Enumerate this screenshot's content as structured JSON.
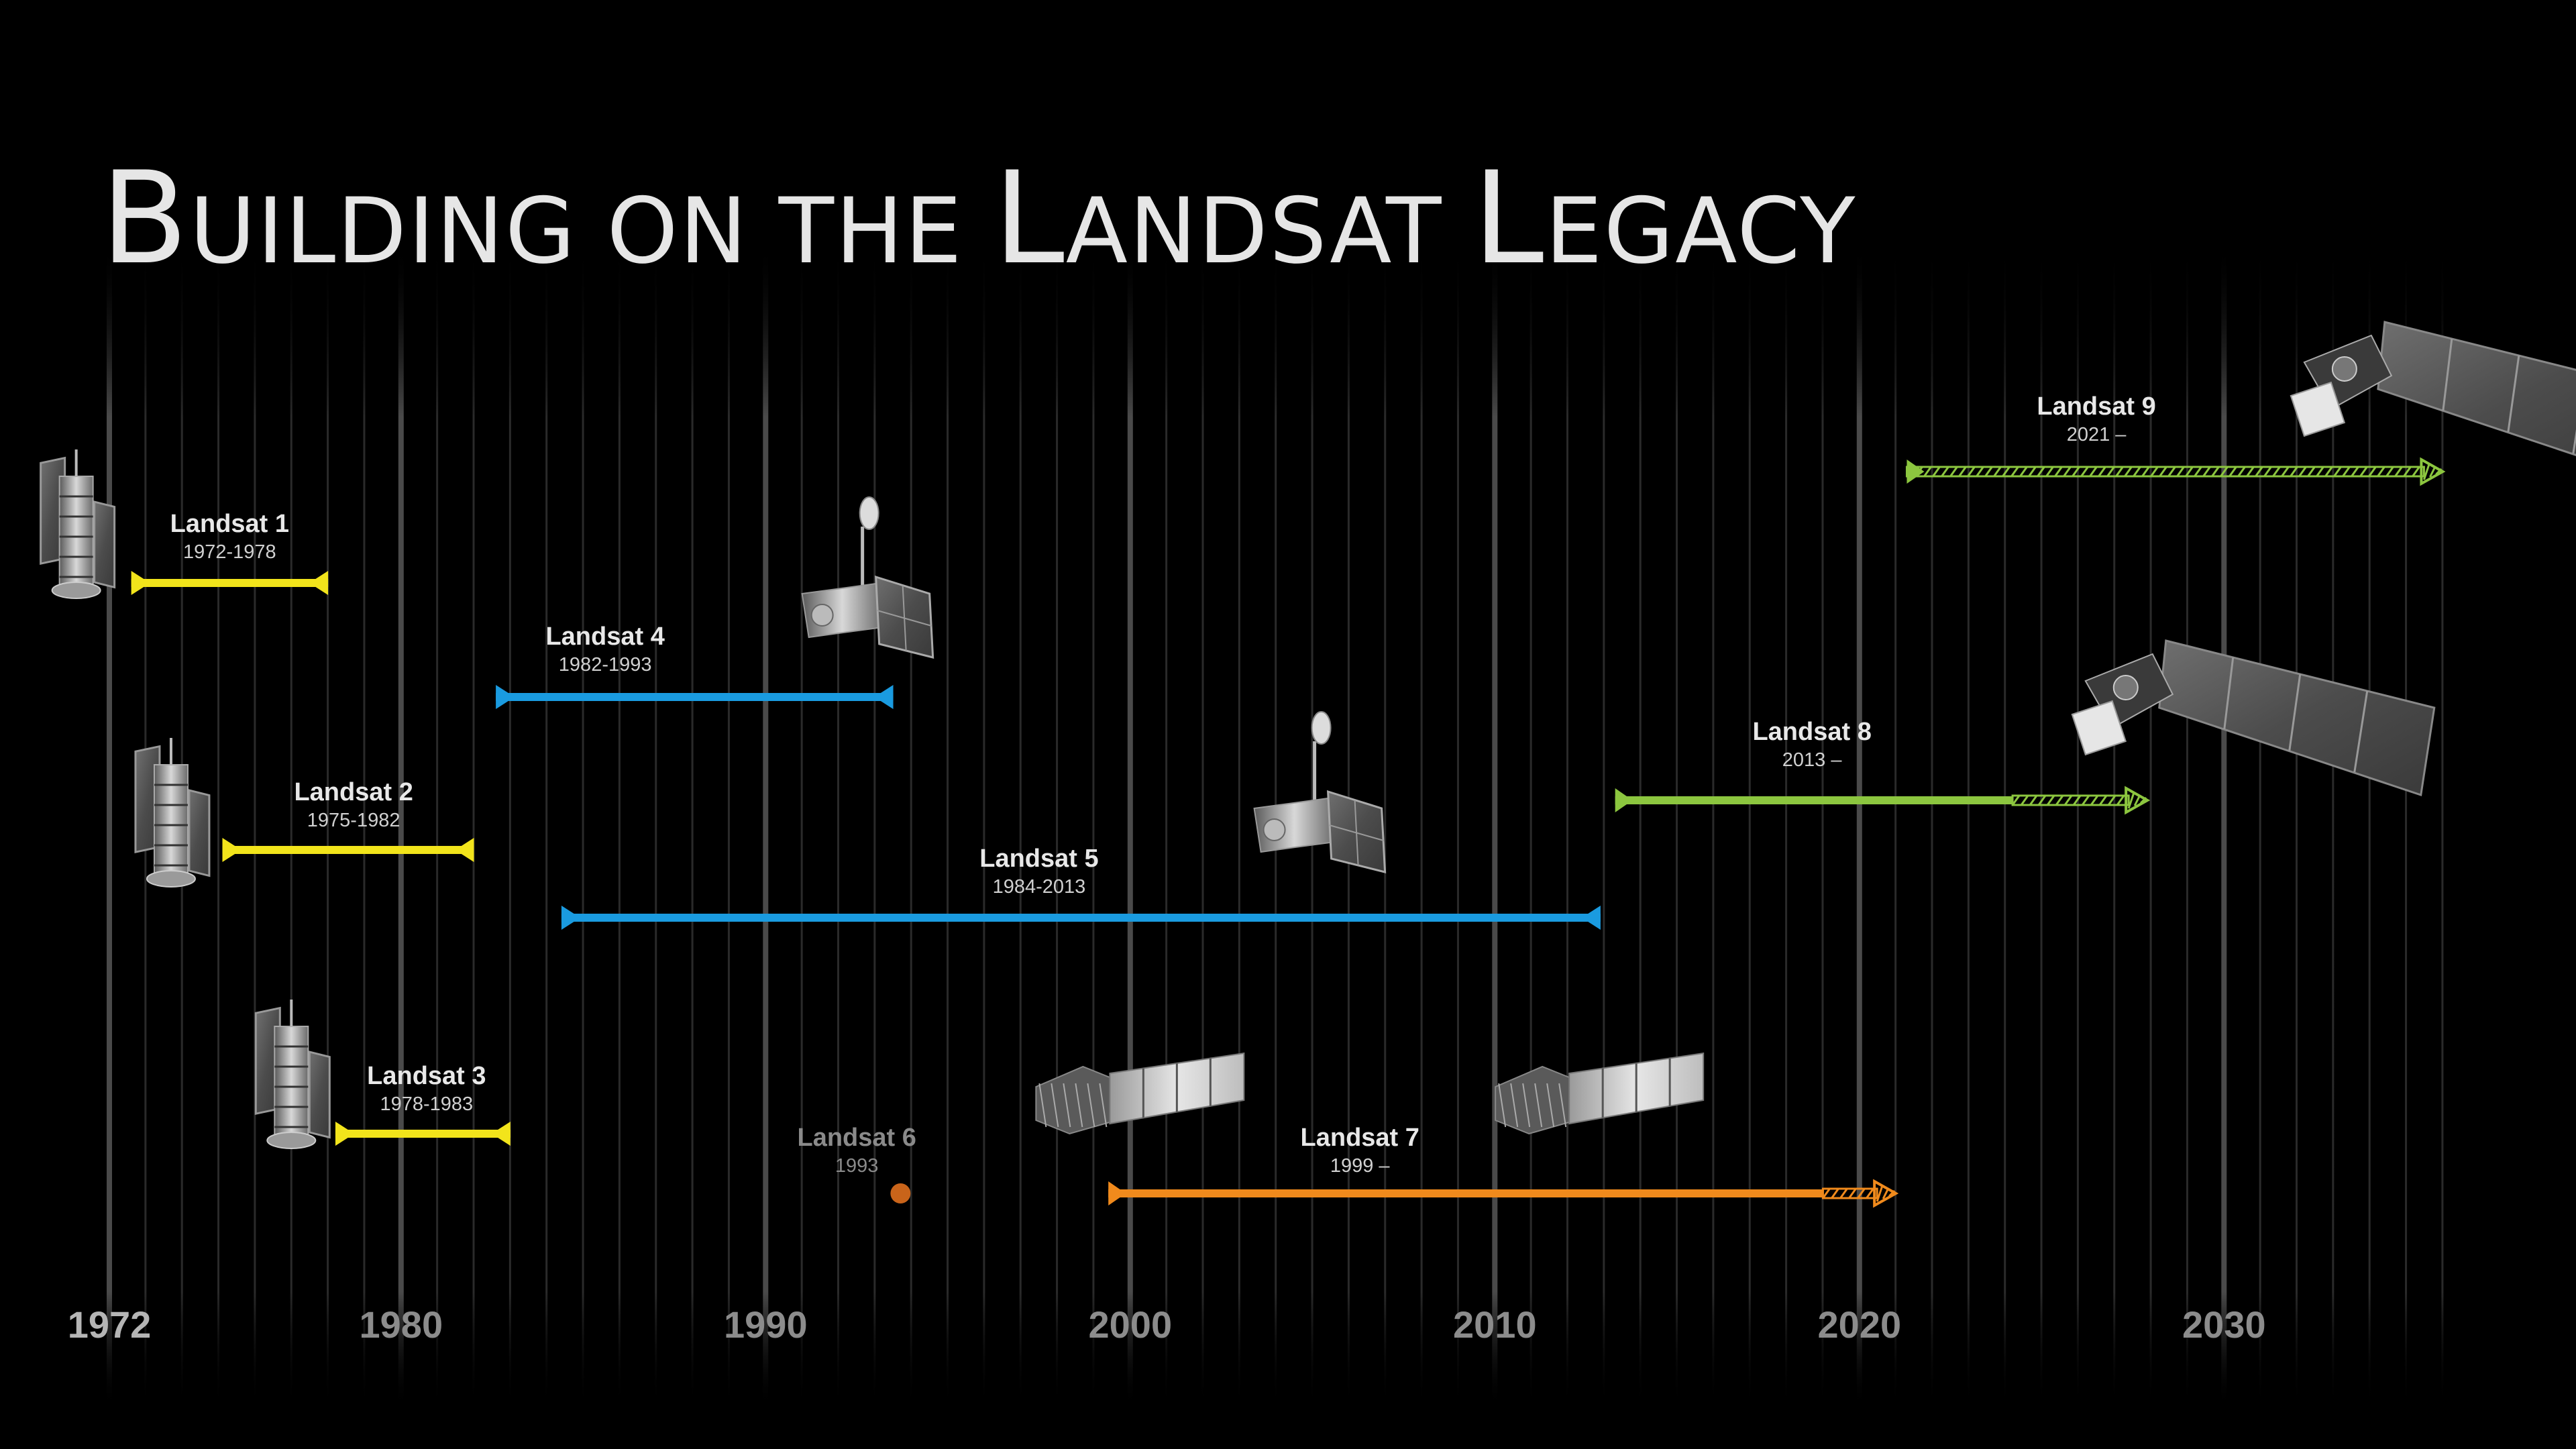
{
  "title": {
    "parts": [
      {
        "text": "B",
        "size": "big"
      },
      {
        "text": "UILDING ON THE ",
        "size": "small"
      },
      {
        "text": "L",
        "size": "big"
      },
      {
        "text": "ANDSAT ",
        "size": "small"
      },
      {
        "text": "L",
        "size": "big"
      },
      {
        "text": "EGACY",
        "size": "small"
      }
    ]
  },
  "axis": {
    "ticks": [
      1972,
      1980,
      1990,
      2000,
      2010,
      2020,
      2030
    ],
    "range": [
      1972,
      2036
    ]
  },
  "colors": {
    "gen1": "#f2e41b",
    "gen2": "#1a9be0",
    "l6": "#c9641a",
    "l7": "#f08a1c",
    "l89": "#8cc63f"
  },
  "missions": [
    {
      "name": "Landsat 1",
      "years": "1972-1978",
      "start": 1972.6,
      "end": 1978.0,
      "ongoing": false,
      "color": "gen1",
      "label_year": 1975.3,
      "tier": "r1",
      "satellite": "gen1-satellite-icon",
      "sat_year": 1971.0
    },
    {
      "name": "Landsat 2",
      "years": "1975-1982",
      "start": 1975.1,
      "end": 1982.0,
      "ongoing": false,
      "color": "gen1",
      "label_year": 1978.7,
      "tier": "r4",
      "satellite": "gen1-satellite-icon",
      "sat_year": 1973.6
    },
    {
      "name": "Landsat 3",
      "years": "1978-1983",
      "start": 1978.2,
      "end": 1983.0,
      "ongoing": false,
      "color": "gen1",
      "label_year": 1980.7,
      "tier": "r7",
      "satellite": "gen1-satellite-icon",
      "sat_year": 1976.9
    },
    {
      "name": "Landsat 4",
      "years": "1982-1993",
      "start": 1982.6,
      "end": 1993.5,
      "ongoing": false,
      "color": "gen2",
      "label_year": 1985.6,
      "tier": "r2",
      "satellite": "gen2-satellite-icon",
      "sat_year": 1991.0
    },
    {
      "name": "Landsat 5",
      "years": "1984-2013",
      "start": 1984.4,
      "end": 2012.9,
      "ongoing": false,
      "color": "gen2",
      "label_year": 1997.5,
      "tier": "r5",
      "satellite": "gen2-satellite-icon",
      "sat_year": 2003.4
    },
    {
      "name": "Landsat 6",
      "years": "1993",
      "start": 1993.7,
      "end": 1993.7,
      "failed": true,
      "color": "l6",
      "label_year": 1992.5,
      "tier": "r8",
      "satellite": "l7-satellite-icon",
      "sat_year": 1997.6
    },
    {
      "name": "Landsat 7",
      "years": "1999 –",
      "start": 1999.4,
      "end": 2021.0,
      "ongoing": true,
      "hatch_from": 2019.0,
      "color": "l7",
      "label_year": 2006.3,
      "tier": "r8",
      "satellite": "l7-satellite-icon",
      "sat_year": 2010.2
    },
    {
      "name": "Landsat 8",
      "years": "2013 –",
      "start": 2013.3,
      "end": 2027.9,
      "ongoing": true,
      "hatch_from": 2024.2,
      "color": "l89",
      "label_year": 2018.7,
      "tier": "r3",
      "satellite": "l89-satellite-icon",
      "sat_year": 2026.2
    },
    {
      "name": "Landsat 9",
      "years": "2021 –",
      "start": 2021.3,
      "end": 2036.0,
      "ongoing": true,
      "hatch_from": 2021.3,
      "color": "l89",
      "label_year": 2026.5,
      "tier": "r0",
      "satellite": "l89-satellite-icon",
      "sat_year": 2032.2
    }
  ]
}
